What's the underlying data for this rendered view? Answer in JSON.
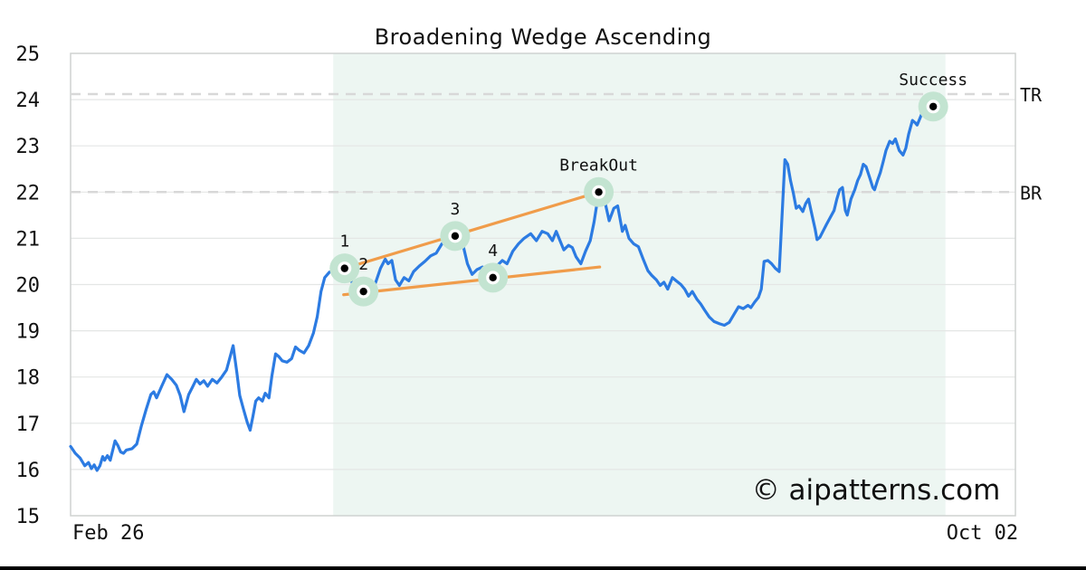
{
  "title": "Broadening Wedge Ascending",
  "watermark": "© aipatterns.com",
  "colors": {
    "price_line": "#2c7be2",
    "trendline": "#f09c4a",
    "marker_halo": "#c3e4d1",
    "marker_dot": "#000000",
    "marker_ring": "#ffffff",
    "pattern_region_fill": "#edf6f2",
    "gridline": "#e4e6e5",
    "plot_border": "#cfd2d1",
    "level_dash": "#d8d8d8",
    "watermark_color": "#c9cbf1",
    "text": "#111111",
    "bottom_bar": "#000000"
  },
  "chart_data": {
    "type": "line",
    "title": "Broadening Wedge Ascending",
    "xlabel": "",
    "ylabel": "",
    "ylim": [
      15,
      25
    ],
    "grid": "horizontal",
    "legend": "none",
    "y_ticks": [
      15,
      16,
      17,
      18,
      19,
      20,
      21,
      22,
      23,
      24,
      25
    ],
    "x_ticks": [
      {
        "label": "Feb 26",
        "pct": 4.0
      },
      {
        "label": "Oct 02",
        "pct": 96.5
      }
    ],
    "pattern_region_pct": [
      27.8,
      92.6
    ],
    "levels": [
      {
        "label": "TR",
        "value": 24.12
      },
      {
        "label": "BR",
        "value": 22.0
      }
    ],
    "trendlines": [
      {
        "name": "upper",
        "from": [
          29.0,
          20.35
        ],
        "to": [
          55.9,
          22.0
        ]
      },
      {
        "name": "lower",
        "from": [
          28.9,
          19.78
        ],
        "to": [
          56.0,
          20.38
        ]
      }
    ],
    "markers": [
      {
        "label": "1",
        "x": 29.0,
        "y": 20.35
      },
      {
        "label": "2",
        "x": 31.0,
        "y": 19.85
      },
      {
        "label": "3",
        "x": 40.7,
        "y": 21.05
      },
      {
        "label": "4",
        "x": 44.7,
        "y": 20.15
      },
      {
        "label": "BreakOut",
        "x": 55.9,
        "y": 22.0
      },
      {
        "label": "Success",
        "x": 91.3,
        "y": 23.85
      }
    ],
    "series": [
      {
        "name": "price",
        "points": [
          [
            0,
            16.5
          ],
          [
            0.5,
            16.35
          ],
          [
            1.0,
            16.25
          ],
          [
            1.5,
            16.08
          ],
          [
            1.9,
            16.15
          ],
          [
            2.2,
            16.02
          ],
          [
            2.5,
            16.1
          ],
          [
            2.8,
            15.98
          ],
          [
            3.1,
            16.08
          ],
          [
            3.4,
            16.28
          ],
          [
            3.6,
            16.2
          ],
          [
            3.9,
            16.3
          ],
          [
            4.2,
            16.2
          ],
          [
            4.5,
            16.45
          ],
          [
            4.7,
            16.62
          ],
          [
            5.0,
            16.52
          ],
          [
            5.3,
            16.38
          ],
          [
            5.6,
            16.35
          ],
          [
            5.9,
            16.42
          ],
          [
            6.5,
            16.45
          ],
          [
            7.0,
            16.55
          ],
          [
            7.5,
            16.95
          ],
          [
            8.0,
            17.3
          ],
          [
            8.5,
            17.62
          ],
          [
            8.8,
            17.68
          ],
          [
            9.1,
            17.55
          ],
          [
            9.6,
            17.78
          ],
          [
            10.2,
            18.05
          ],
          [
            10.7,
            17.95
          ],
          [
            11.2,
            17.82
          ],
          [
            11.6,
            17.6
          ],
          [
            12.0,
            17.25
          ],
          [
            12.5,
            17.62
          ],
          [
            12.9,
            17.78
          ],
          [
            13.3,
            17.95
          ],
          [
            13.7,
            17.85
          ],
          [
            14.1,
            17.92
          ],
          [
            14.5,
            17.8
          ],
          [
            15.0,
            17.95
          ],
          [
            15.5,
            17.87
          ],
          [
            16.0,
            18.0
          ],
          [
            16.5,
            18.15
          ],
          [
            17.2,
            18.68
          ],
          [
            17.6,
            18.1
          ],
          [
            17.9,
            17.6
          ],
          [
            18.3,
            17.3
          ],
          [
            18.7,
            17.02
          ],
          [
            19.0,
            16.85
          ],
          [
            19.3,
            17.15
          ],
          [
            19.6,
            17.48
          ],
          [
            19.9,
            17.55
          ],
          [
            20.3,
            17.48
          ],
          [
            20.6,
            17.65
          ],
          [
            21.0,
            17.55
          ],
          [
            21.3,
            18.02
          ],
          [
            21.7,
            18.5
          ],
          [
            22.0,
            18.45
          ],
          [
            22.4,
            18.35
          ],
          [
            22.9,
            18.32
          ],
          [
            23.4,
            18.4
          ],
          [
            23.8,
            18.65
          ],
          [
            24.2,
            18.58
          ],
          [
            24.7,
            18.52
          ],
          [
            25.2,
            18.68
          ],
          [
            25.7,
            18.95
          ],
          [
            26.1,
            19.3
          ],
          [
            26.5,
            19.85
          ],
          [
            26.9,
            20.15
          ],
          [
            27.4,
            20.27
          ],
          [
            28.0,
            20.3
          ],
          [
            28.5,
            20.33
          ],
          [
            29.0,
            20.35
          ],
          [
            29.5,
            20.18
          ],
          [
            30.0,
            19.95
          ],
          [
            30.5,
            19.8
          ],
          [
            31.0,
            19.85
          ],
          [
            31.4,
            19.68
          ],
          [
            31.8,
            19.82
          ],
          [
            32.3,
            20.05
          ],
          [
            32.8,
            20.35
          ],
          [
            33.3,
            20.55
          ],
          [
            33.6,
            20.45
          ],
          [
            34.0,
            20.52
          ],
          [
            34.4,
            20.1
          ],
          [
            34.8,
            19.98
          ],
          [
            35.3,
            20.15
          ],
          [
            35.8,
            20.08
          ],
          [
            36.3,
            20.28
          ],
          [
            36.9,
            20.4
          ],
          [
            37.5,
            20.5
          ],
          [
            38.1,
            20.62
          ],
          [
            38.7,
            20.68
          ],
          [
            39.3,
            20.88
          ],
          [
            39.9,
            21.0
          ],
          [
            40.7,
            21.05
          ],
          [
            41.1,
            20.78
          ],
          [
            41.5,
            20.88
          ],
          [
            42.0,
            20.45
          ],
          [
            42.5,
            20.22
          ],
          [
            43.0,
            20.32
          ],
          [
            43.6,
            20.38
          ],
          [
            44.1,
            20.28
          ],
          [
            44.7,
            20.15
          ],
          [
            45.2,
            20.42
          ],
          [
            45.7,
            20.52
          ],
          [
            46.2,
            20.45
          ],
          [
            46.8,
            20.72
          ],
          [
            47.4,
            20.88
          ],
          [
            48.0,
            21.0
          ],
          [
            48.7,
            21.1
          ],
          [
            49.3,
            20.95
          ],
          [
            49.9,
            21.15
          ],
          [
            50.5,
            21.1
          ],
          [
            51.0,
            20.95
          ],
          [
            51.4,
            21.15
          ],
          [
            51.8,
            20.95
          ],
          [
            52.2,
            20.75
          ],
          [
            52.7,
            20.85
          ],
          [
            53.1,
            20.8
          ],
          [
            53.5,
            20.6
          ],
          [
            54.0,
            20.45
          ],
          [
            54.5,
            20.72
          ],
          [
            55.0,
            20.95
          ],
          [
            55.4,
            21.35
          ],
          [
            55.9,
            22.0
          ],
          [
            56.2,
            22.08
          ],
          [
            56.6,
            21.75
          ],
          [
            57.0,
            21.38
          ],
          [
            57.5,
            21.65
          ],
          [
            57.9,
            21.7
          ],
          [
            58.4,
            21.15
          ],
          [
            58.7,
            21.28
          ],
          [
            59.1,
            21.0
          ],
          [
            59.6,
            20.88
          ],
          [
            60.1,
            20.82
          ],
          [
            60.6,
            20.55
          ],
          [
            61.1,
            20.3
          ],
          [
            61.5,
            20.2
          ],
          [
            62.0,
            20.1
          ],
          [
            62.4,
            19.98
          ],
          [
            62.8,
            20.05
          ],
          [
            63.2,
            19.9
          ],
          [
            63.7,
            20.15
          ],
          [
            64.1,
            20.08
          ],
          [
            64.6,
            20.0
          ],
          [
            65.0,
            19.9
          ],
          [
            65.4,
            19.75
          ],
          [
            65.8,
            19.85
          ],
          [
            66.3,
            19.68
          ],
          [
            66.7,
            19.58
          ],
          [
            67.1,
            19.45
          ],
          [
            67.6,
            19.3
          ],
          [
            68.1,
            19.2
          ],
          [
            68.7,
            19.15
          ],
          [
            69.2,
            19.12
          ],
          [
            69.7,
            19.18
          ],
          [
            70.2,
            19.35
          ],
          [
            70.7,
            19.52
          ],
          [
            71.2,
            19.48
          ],
          [
            71.7,
            19.55
          ],
          [
            72.0,
            19.5
          ],
          [
            72.4,
            19.62
          ],
          [
            72.8,
            19.72
          ],
          [
            73.1,
            19.9
          ],
          [
            73.4,
            20.5
          ],
          [
            73.8,
            20.52
          ],
          [
            74.2,
            20.45
          ],
          [
            74.6,
            20.35
          ],
          [
            75.0,
            20.28
          ],
          [
            75.6,
            22.7
          ],
          [
            75.9,
            22.6
          ],
          [
            76.2,
            22.25
          ],
          [
            76.5,
            21.97
          ],
          [
            76.8,
            21.65
          ],
          [
            77.1,
            21.7
          ],
          [
            77.5,
            21.58
          ],
          [
            77.8,
            21.75
          ],
          [
            78.1,
            21.85
          ],
          [
            78.5,
            21.48
          ],
          [
            78.8,
            21.2
          ],
          [
            79.0,
            20.97
          ],
          [
            79.3,
            21.02
          ],
          [
            79.7,
            21.18
          ],
          [
            80.0,
            21.3
          ],
          [
            80.4,
            21.45
          ],
          [
            80.8,
            21.6
          ],
          [
            81.1,
            21.85
          ],
          [
            81.4,
            22.05
          ],
          [
            81.7,
            22.1
          ],
          [
            82.0,
            21.6
          ],
          [
            82.2,
            21.5
          ],
          [
            82.6,
            21.85
          ],
          [
            83.0,
            22.05
          ],
          [
            83.3,
            22.25
          ],
          [
            83.6,
            22.38
          ],
          [
            83.9,
            22.6
          ],
          [
            84.2,
            22.55
          ],
          [
            84.6,
            22.3
          ],
          [
            84.9,
            22.1
          ],
          [
            85.1,
            22.05
          ],
          [
            85.4,
            22.25
          ],
          [
            85.7,
            22.42
          ],
          [
            86.0,
            22.65
          ],
          [
            86.3,
            22.9
          ],
          [
            86.7,
            23.1
          ],
          [
            87.0,
            23.05
          ],
          [
            87.3,
            23.15
          ],
          [
            87.7,
            22.9
          ],
          [
            88.1,
            22.8
          ],
          [
            88.4,
            22.95
          ],
          [
            88.7,
            23.25
          ],
          [
            89.1,
            23.55
          ],
          [
            89.4,
            23.5
          ],
          [
            89.6,
            23.45
          ],
          [
            89.9,
            23.6
          ],
          [
            90.2,
            23.75
          ],
          [
            90.5,
            23.85
          ],
          [
            90.8,
            23.88
          ],
          [
            91.3,
            23.85
          ],
          [
            91.9,
            23.8
          ],
          [
            92.6,
            23.78
          ]
        ]
      }
    ]
  }
}
